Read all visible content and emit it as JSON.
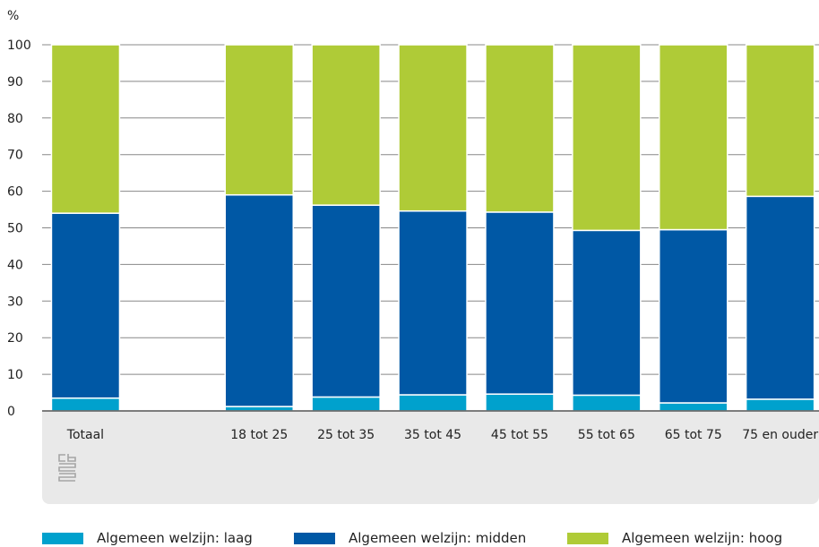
{
  "chart_data": {
    "type": "bar",
    "stacked": true,
    "ylabel": "%",
    "ylim": [
      0,
      100
    ],
    "yticks": [
      0,
      10,
      20,
      30,
      40,
      50,
      60,
      70,
      80,
      90,
      100
    ],
    "grid": true,
    "legend_position": "bottom",
    "categories": [
      "Totaal",
      "",
      "18 tot 25",
      "25 tot 35",
      "35 tot 45",
      "45 tot 55",
      "55 tot 65",
      "65 tot 75",
      "75 en ouder"
    ],
    "series": [
      {
        "name": "Algemeen welzijn: laag",
        "color": "#00a1cd",
        "values": [
          3.5,
          null,
          1.2,
          3.8,
          4.4,
          4.6,
          4.3,
          2.2,
          3.2
        ]
      },
      {
        "name": "Algemeen welzijn: midden",
        "color": "#0058a5",
        "values": [
          50.5,
          null,
          57.8,
          52.4,
          50.2,
          49.7,
          45.0,
          47.3,
          55.4
        ]
      },
      {
        "name": "Algemeen welzijn: hoog",
        "color": "#afcb37",
        "values": [
          46.0,
          null,
          41.0,
          43.8,
          45.4,
          45.7,
          50.7,
          50.5,
          41.4
        ]
      }
    ]
  },
  "logo": "cbs-logo",
  "colors": {
    "panel": "#e9e9e9",
    "grid": "#888888",
    "axis": "#555555"
  }
}
